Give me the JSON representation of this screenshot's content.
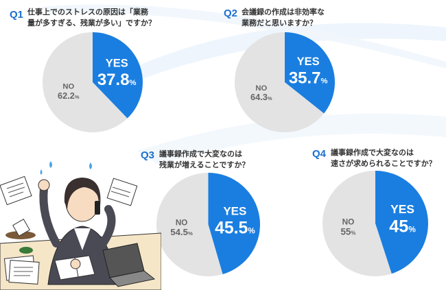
{
  "colors": {
    "yes": "#1a7ee0",
    "no": "#e3e3e3",
    "accent": "#1a6fcf"
  },
  "questions": [
    {
      "number": "Q1",
      "lines": [
        "仕事上でのストレスの原因は「業務",
        "量が多すぎる、残業が多い」ですか？"
      ]
    },
    {
      "number": "Q2",
      "lines": [
        "会議録の作成は非効率な",
        "業務だと思いますか？"
      ]
    },
    {
      "number": "Q3",
      "lines": [
        "議事録作成で大変なのは",
        "残業が増えることですか？"
      ]
    },
    {
      "number": "Q4",
      "lines": [
        "議事録作成で大変なのは",
        "速さが求められることですか？"
      ]
    }
  ],
  "chart_data": [
    {
      "type": "pie",
      "categories": [
        "YES",
        "NO"
      ],
      "values": [
        37.8,
        62.2
      ],
      "value_labels": [
        "37.8",
        "62.2"
      ],
      "unit": "%"
    },
    {
      "type": "pie",
      "categories": [
        "YES",
        "NO"
      ],
      "values": [
        35.7,
        64.3
      ],
      "value_labels": [
        "35.7",
        "64.3"
      ],
      "unit": "%"
    },
    {
      "type": "pie",
      "categories": [
        "YES",
        "NO"
      ],
      "values": [
        45.5,
        54.5
      ],
      "value_labels": [
        "45.5",
        "54.5"
      ],
      "unit": "%"
    },
    {
      "type": "pie",
      "categories": [
        "YES",
        "NO"
      ],
      "values": [
        45,
        55
      ],
      "value_labels": [
        "45",
        "55"
      ],
      "unit": "%"
    }
  ]
}
